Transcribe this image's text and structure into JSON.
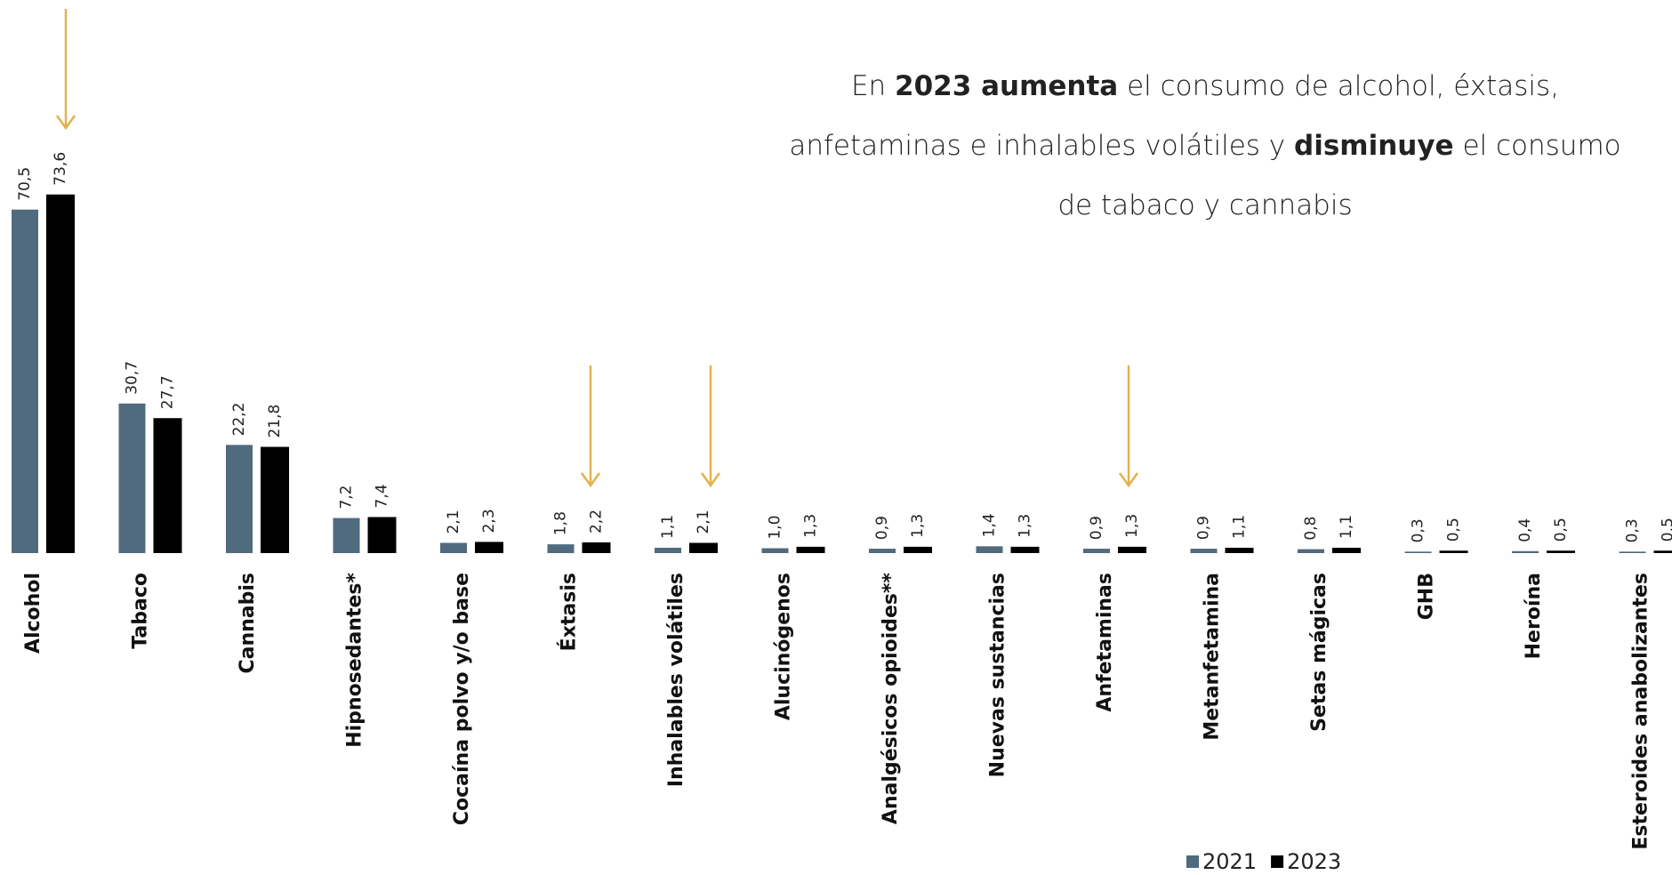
{
  "chart_data": {
    "type": "bar",
    "annotation": [
      {
        "text": "En ",
        "bold": false
      },
      {
        "text": "2023 aumenta",
        "bold": true
      },
      {
        "text": " el consumo de alcohol, éxtasis, anfetaminas e inhalables volátiles y ",
        "bold": false
      },
      {
        "text": "disminuye",
        "bold": true
      },
      {
        "text": " el consumo de tabaco y cannabis",
        "bold": false
      }
    ],
    "categories": [
      "Alcohol",
      "Tabaco",
      "Cannabis",
      "Hipnosedantes*",
      "Cocaína polvo y/o base",
      "Éxtasis",
      "Inhalables volátiles",
      "Alucinógenos",
      "Analgésicos opioides**",
      "Nuevas sustancias",
      "Anfetaminas",
      "Metanfetamina",
      "Setas mágicas",
      "GHB",
      "Heroína",
      "Esteroides anabolizantes"
    ],
    "series": [
      {
        "name": "2021",
        "color": "#506a7e",
        "values": [
          70.5,
          30.7,
          22.2,
          7.2,
          2.1,
          1.8,
          1.1,
          1.0,
          0.9,
          1.4,
          0.9,
          0.9,
          0.8,
          0.3,
          0.4,
          0.3
        ],
        "value_labels": [
          "70,5",
          "30,7",
          "22,2",
          "7,2",
          "2,1",
          "1,8",
          "1,1",
          "1,0",
          "0,9",
          "1,4",
          "0,9",
          "0,9",
          "0,8",
          "0,3",
          "0,4",
          "0,3"
        ]
      },
      {
        "name": "2023",
        "color": "#000000",
        "values": [
          73.6,
          27.7,
          21.8,
          7.4,
          2.3,
          2.2,
          2.1,
          1.3,
          1.3,
          1.3,
          1.3,
          1.1,
          1.1,
          0.5,
          0.5,
          0.5
        ],
        "value_labels": [
          "73,6",
          "27,7",
          "21,8",
          "7,4",
          "2,3",
          "2,2",
          "2,1",
          "1,3",
          "1,3",
          "1,3",
          "1,3",
          "1,1",
          "1,1",
          "0,5",
          "0,5",
          "0,5"
        ]
      }
    ],
    "legend": "bottom"
  }
}
